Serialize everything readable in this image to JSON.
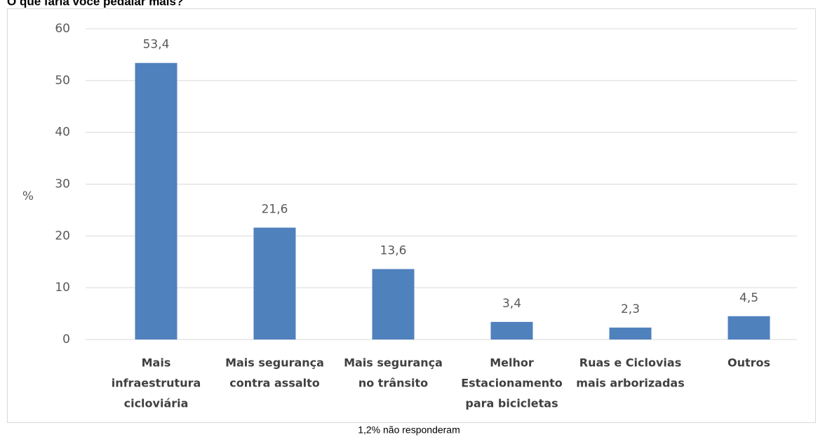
{
  "chart_data": {
    "type": "bar",
    "title": "O que faria você pedalar mais?",
    "ylabel": "%",
    "categories": [
      [
        "Mais",
        "infraestrutura",
        "cicloviária"
      ],
      [
        "Mais segurança",
        "contra assalto"
      ],
      [
        "Mais segurança",
        "no trânsito"
      ],
      [
        "Melhor",
        "Estacionamento",
        "para bicicletas"
      ],
      [
        "Ruas e Ciclovias",
        "mais arborizadas"
      ],
      [
        "Outros"
      ]
    ],
    "values": [
      53.4,
      21.6,
      13.6,
      3.4,
      2.3,
      4.5
    ],
    "value_labels": [
      "53,4",
      "21,6",
      "13,6",
      "3,4",
      "2,3",
      "4,5"
    ],
    "color": "#4f81bd",
    "ylim": [
      0,
      60
    ],
    "yticks": [
      0,
      10,
      20,
      30,
      40,
      50,
      60
    ],
    "grid": true,
    "note": "1,2% não responderam"
  }
}
